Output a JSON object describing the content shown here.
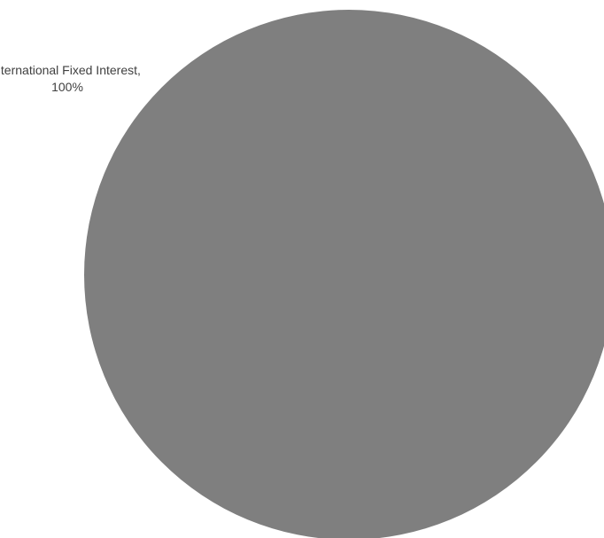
{
  "chart_data": {
    "type": "pie",
    "slices": [
      {
        "label": "International Fixed Interest",
        "value": 100,
        "value_label": "100%",
        "color": "#7f7f7f"
      }
    ],
    "title": "",
    "legend": "none",
    "data_label_position": "outside"
  }
}
